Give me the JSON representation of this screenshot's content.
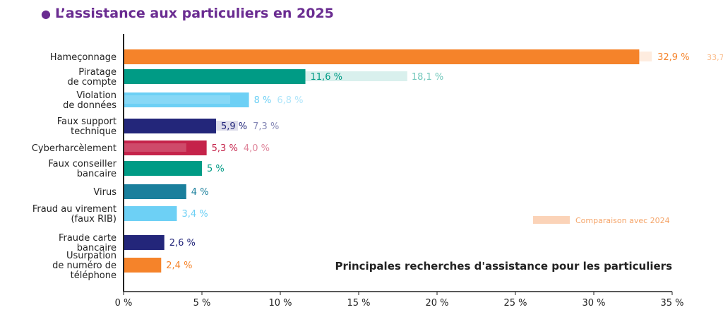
{
  "title": "L’assistance aux particuliers en 2025",
  "chart_data": {
    "type": "bar",
    "orientation": "horizontal",
    "title": "Principales recherches d'assistance pour les particuliers",
    "categories": [
      [
        "Hameçonnage"
      ],
      [
        "Piratage",
        "de compte"
      ],
      [
        "Violation",
        "de données"
      ],
      [
        "Faux support",
        "technique"
      ],
      [
        "Cyberharcèlement"
      ],
      [
        "Faux conseiller",
        "bancaire"
      ],
      [
        "Virus"
      ],
      [
        "Fraud au virement",
        "(faux RIB)"
      ],
      [
        "Fraude carte",
        "bancaire"
      ],
      [
        "Usurpation",
        "de numéro de",
        "téléphone"
      ]
    ],
    "series": [
      {
        "name": "2025",
        "values": [
          32.9,
          11.6,
          8,
          5.9,
          5.3,
          5,
          4,
          3.4,
          2.6,
          2.4
        ],
        "labels": [
          "32,9 %",
          "11,6 %",
          "8 %",
          "5,9 %",
          "5,3 %",
          "5 %",
          "4 %",
          "3,4 %",
          "2,6 %",
          "2,4 %"
        ]
      },
      {
        "name": "Comparaison avec 2024",
        "values": [
          33.7,
          18.1,
          6.8,
          7.3,
          4.0,
          null,
          null,
          null,
          null,
          null
        ],
        "labels": [
          "33,7 %",
          "18,1 %",
          "6,8 %",
          "7,3 %",
          "4,0 %",
          null,
          null,
          null,
          null,
          null
        ]
      }
    ],
    "colors": [
      "#F5832A",
      "#009B85",
      "#6DD0F5",
      "#23267A",
      "#C5234A",
      "#009B85",
      "#1A7F9C",
      "#6DD0F5",
      "#23267A",
      "#F5832A"
    ],
    "xlim": [
      0,
      35
    ],
    "xticks": [
      "0 %",
      "5 %",
      "10 %",
      "15 %",
      "20 %",
      "25 %",
      "30 %",
      "35 %"
    ],
    "legend": {
      "label": "Comparaison avec 2024",
      "color": "#FBD3B8",
      "position": "bottom-right"
    },
    "grid": false
  }
}
